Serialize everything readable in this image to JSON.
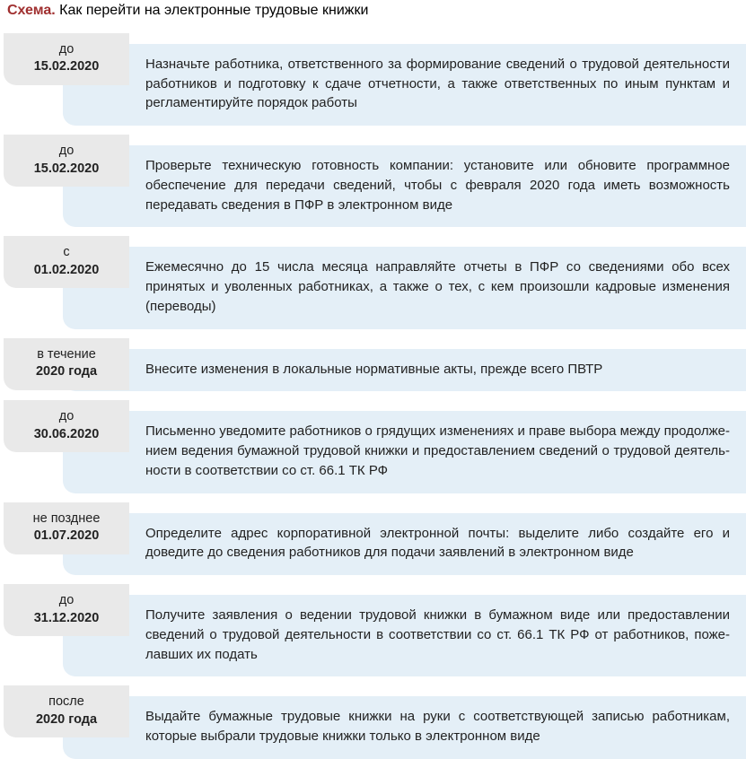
{
  "colors": {
    "pill_bg": "#e9e9e9",
    "content_bg": "#e4eff7",
    "title_bold_color": "#a03030",
    "text_color": "#222222",
    "background": "#ffffff"
  },
  "title": {
    "bold": "Схема.",
    "rest": " Как перейти на электронные трудовые книжки"
  },
  "rows": [
    {
      "date_prefix": "до",
      "date_value": "15.02.2020",
      "body": "Назначьте работника, ответственного за формирование сведений о трудовой деятельности работников и подготовку к сдаче отчетности, а также ответственных по иным пунктам и регла­ментируйте порядок работы"
    },
    {
      "date_prefix": "до",
      "date_value": "15.02.2020",
      "body": "Проверьте техническую готовность компании: установите или обновите программное обеспе­чение для передачи сведений, чтобы с февраля 2020 года иметь возможность передавать сведения в ПФР в электронном виде"
    },
    {
      "date_prefix": "с",
      "date_value": "01.02.2020",
      "body": "Ежемесячно до 15 числа месяца направляйте отчеты в ПФР со сведениями обо всех принятых и уволенных работниках, а также о тех, с кем произошли кадровые изменения (переводы)"
    },
    {
      "date_prefix": "в течение",
      "date_value": "2020 года",
      "body": "Внесите изменения в локальные нормативные акты, прежде всего ПВТР"
    },
    {
      "date_prefix": "до",
      "date_value": "30.06.2020",
      "body": "Письменно уведомите работников о грядущих изменениях и праве выбора между продолже­нием ведения бумажной трудовой книжки и предоставлением сведений о трудовой деятель­ности в соответствии со ст. 66.1 ТК РФ"
    },
    {
      "date_prefix": "не позднее",
      "date_value": "01.07.2020",
      "body": "Определите адрес корпоративной электронной почты: выделите либо создайте его и доведите до сведения работников для подачи заявлений в электронном виде"
    },
    {
      "date_prefix": "до",
      "date_value": "31.12.2020",
      "body": "Получите заявления о ведении трудовой книжки в бумажном виде или предоставлении сведений о трудовой деятельности в соответствии со ст. 66.1 ТК РФ от работников, поже­лавших их подать"
    },
    {
      "date_prefix": "после",
      "date_value": "2020 года",
      "body": "Выдайте бумажные трудовые книжки на руки с соответствующей записью работникам, которые выбрали трудовые книжки только в электронном виде"
    }
  ]
}
